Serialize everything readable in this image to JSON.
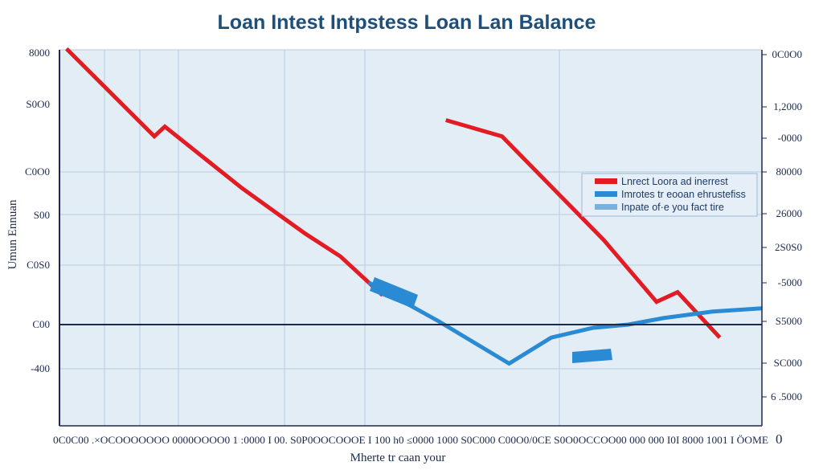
{
  "chart_data": {
    "type": "line",
    "title": "Loan Intest Intpstess Loan Lan Balance",
    "xlabel": "Mherte tr caan your",
    "ylabel": "Umun Ennuan",
    "y_left_ticks": [
      "8000",
      "S0O0",
      "C0O0",
      "S00",
      "C0S0",
      "C00",
      "-400"
    ],
    "y_right_ticks": [
      "0C0O0",
      "1,2000",
      "-0000",
      "80000",
      "26000",
      "2S0S0",
      "-5000",
      "S5000",
      "SC000",
      "6 .5000"
    ],
    "x_ticks_text": "0C0C00 .×OCOOOOOOO 0000OOOO0 1 :0000 I 00. S0P0OOCOOOE I 100 h0 ≤0000 1000 S0C000 C00O0/0CE S0O0OCCOO00 000 000 I0I 8000 1001 I ÖOME",
    "x_end_tick": "0",
    "x": [
      0,
      10,
      20,
      30,
      40,
      50,
      60,
      70,
      80,
      90,
      100,
      110,
      120,
      130,
      140,
      150,
      160,
      170,
      180,
      190,
      200
    ],
    "ylim": [
      0,
      100
    ],
    "series": [
      {
        "name": "Lnrect Loora ad inerrest",
        "color": "#e31b23",
        "segments": [
          [
            [
              2,
              85
            ],
            [
              27,
              58
            ],
            [
              30,
              61
            ],
            [
              52,
              42
            ],
            [
              70,
              28
            ],
            [
              80,
              21
            ],
            [
              92,
              9
            ]
          ],
          [
            [
              110,
              63
            ],
            [
              126,
              58
            ],
            [
              155,
              26
            ],
            [
              170,
              7
            ],
            [
              176,
              10
            ],
            [
              188,
              -4
            ]
          ]
        ]
      },
      {
        "name": "Imrotes tr eooan ehrustefiss",
        "color": "#2a8ad4",
        "segments": [
          [
            [
              88,
              13
            ],
            [
              108,
              1
            ],
            [
              128,
              -12
            ],
            [
              140,
              -4
            ],
            [
              152,
              -1
            ],
            [
              162,
              0
            ],
            [
              172,
              2
            ],
            [
              186,
              4
            ],
            [
              200,
              5
            ]
          ]
        ]
      }
    ],
    "legend": {
      "placement": "right",
      "entries": [
        {
          "label": "Lnrect Loora ad inerrest",
          "color": "#e31b23"
        },
        {
          "label": "Imrotes tr eooan ehrustefiss",
          "color": "#2a8ad4"
        },
        {
          "label": "Inpate of·e you  fact tire",
          "color": "#79b0dc"
        }
      ]
    },
    "grid": true
  }
}
